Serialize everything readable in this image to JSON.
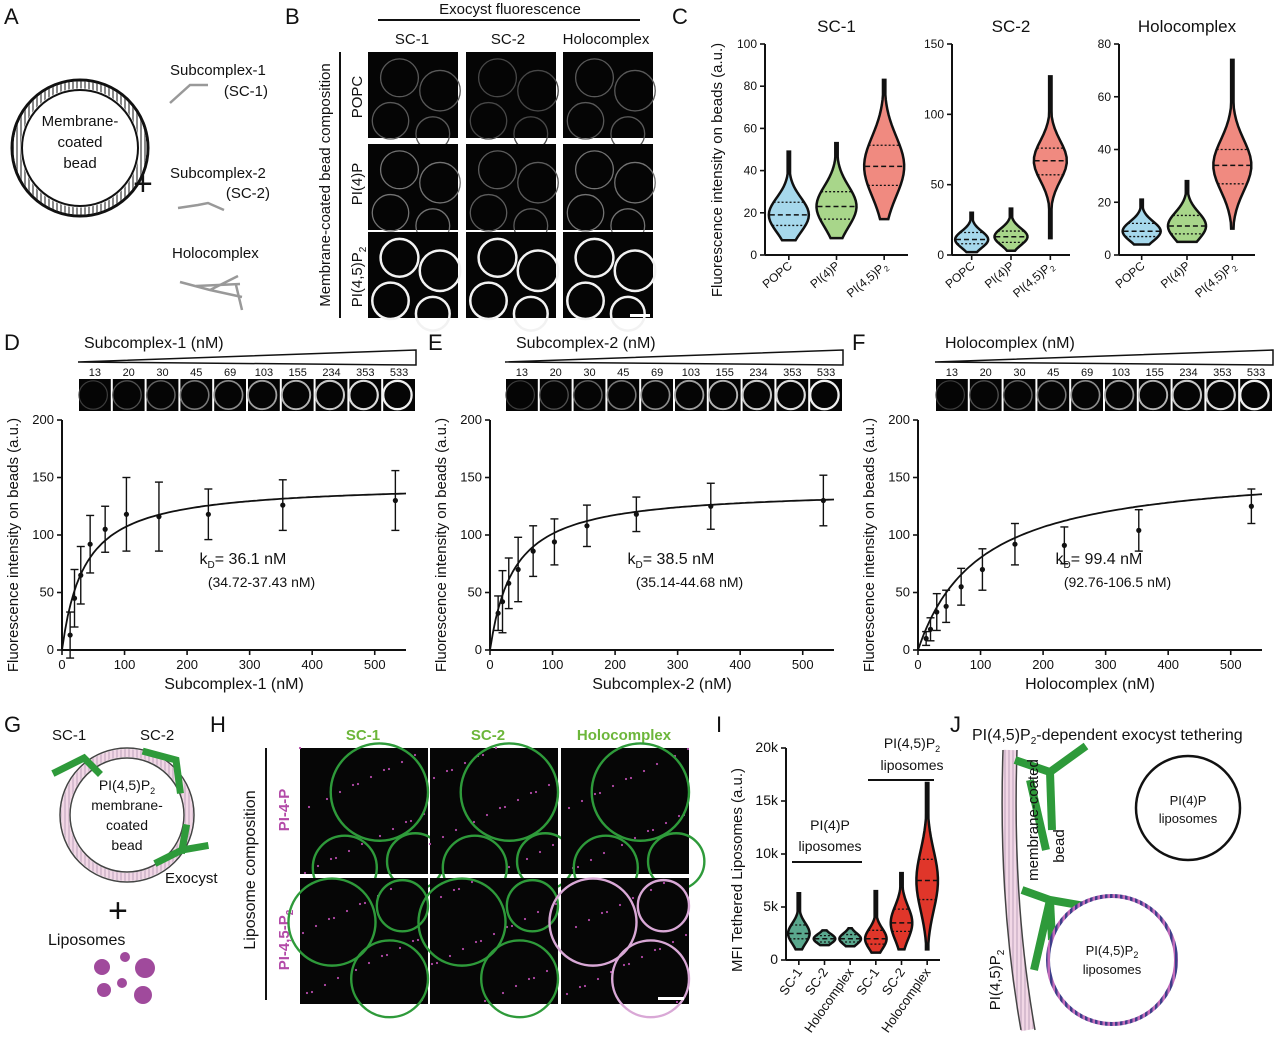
{
  "panels": {
    "A": {
      "letter": "A",
      "bead_label": [
        "Membrane-",
        "coated",
        "bead"
      ],
      "plus": "+",
      "sc1_label": [
        "Subcomplex-1",
        "(SC-1)"
      ],
      "sc2_label": [
        "Subcomplex-2",
        "(SC-2)"
      ],
      "holo_label": "Holocomplex"
    },
    "B": {
      "letter": "B",
      "header": "Exocyst fluorescence",
      "columns": [
        "SC-1",
        "SC-2",
        "Holocomplex"
      ],
      "side_label": "Membrane-coated bead composition",
      "rows": [
        "POPC",
        "PI(4)P",
        "PI(4,5)P"
      ],
      "row_sub": "2"
    },
    "C": {
      "letter": "C",
      "ylabel": "Fluorescence intensity on beads (a.u.)",
      "xcats": [
        "POPC",
        "PI(4)P",
        "PI(4,5)P"
      ],
      "xsub": "2"
    },
    "D": {
      "letter": "D",
      "strip_title": "Subcomplex-1 (nM)",
      "conc": [
        "13",
        "20",
        "30",
        "45",
        "69",
        "103",
        "155",
        "234",
        "353",
        "533"
      ],
      "kd_text": "= 36.1 nM",
      "ci_text": "(34.72-37.43 nM)"
    },
    "E": {
      "letter": "E",
      "strip_title": "Subcomplex-2 (nM)",
      "conc": [
        "13",
        "20",
        "30",
        "45",
        "69",
        "103",
        "155",
        "234",
        "353",
        "533"
      ],
      "kd_text": "= 38.5 nM",
      "ci_text": "(35.14-44.68 nM)"
    },
    "F": {
      "letter": "F",
      "strip_title": "Holocomplex (nM)",
      "conc": [
        "13",
        "20",
        "30",
        "45",
        "69",
        "103",
        "155",
        "234",
        "353",
        "533"
      ],
      "kd_text": "= 99.4 nM",
      "ci_text": "(92.76-106.5 nM)"
    },
    "G": {
      "letter": "G",
      "sc1": "SC-1",
      "sc2": "SC-2",
      "bead": [
        "PI(4,5)P",
        "membrane-",
        "coated",
        "bead"
      ],
      "bead_sub": "2",
      "exocyst": "Exocyst",
      "plus": "+",
      "liposomes": "Liposomes"
    },
    "H": {
      "letter": "H",
      "columns": [
        "SC-1",
        "SC-2",
        "Holocomplex"
      ],
      "side_label": "Liposome composition",
      "row1": "PI-4-P",
      "row2": "PI-4,5-P",
      "row2_sub": "2"
    },
    "I": {
      "letter": "I",
      "ylabel": "MFI Tethered Liposomes (a.u.)",
      "yticks": [
        "0",
        "5k",
        "10k",
        "15k",
        "20k"
      ],
      "group1": [
        "PI(4)P",
        "liposomes"
      ],
      "group2": [
        "PI(4,5)P",
        "liposomes"
      ],
      "group2_sub": "2",
      "xcats": [
        "SC-1",
        "SC-2",
        "Holocomplex",
        "SC-1",
        "SC-2",
        "Holocomplex"
      ]
    },
    "J": {
      "letter": "J",
      "title_a": "PI(4,5)P",
      "title_sub": "2",
      "title_b": "-dependent exocyst tethering",
      "pi4p_lipo": [
        "PI(4)P",
        "liposomes"
      ],
      "pip2_lipo": [
        "PI(4,5)P",
        "liposomes"
      ],
      "pip2_sub": "2",
      "bead_label_a": "PI(4,5)P",
      "bead_label_b": "membrane-coated",
      "bead_label_c": "bead"
    }
  },
  "colors": {
    "popc": "#a6d8ec",
    "pi4p": "#a8d68a",
    "pip2": "#f08a80",
    "green": "#2e9a3a",
    "magenta": "#b34aa8",
    "red": "#e0362a",
    "teal": "#5aa88e"
  },
  "chart_data": [
    {
      "type": "violin",
      "panel": "C",
      "title": "SC-1",
      "ylabel": "Fluorescence intensity on beads (a.u.)",
      "categories": [
        "POPC",
        "PI(4)P",
        "PI(4,5)P2"
      ],
      "medians": [
        19,
        23,
        42
      ],
      "q1": [
        14,
        17,
        33
      ],
      "q3": [
        25,
        30,
        52
      ],
      "min": [
        7,
        8,
        17
      ],
      "max": [
        49,
        53,
        83
      ],
      "ylim": [
        0,
        100
      ],
      "yticks": [
        0,
        20,
        40,
        60,
        80,
        100
      ]
    },
    {
      "type": "violin",
      "panel": "C",
      "title": "SC-2",
      "categories": [
        "POPC",
        "PI(4)P",
        "PI(4,5)P2"
      ],
      "medians": [
        11,
        13,
        67
      ],
      "q1": [
        8,
        9,
        57
      ],
      "q3": [
        16,
        17,
        76
      ],
      "min": [
        2,
        3,
        12
      ],
      "max": [
        30,
        33,
        127
      ],
      "ylim": [
        0,
        150
      ],
      "yticks": [
        0,
        50,
        100,
        150
      ]
    },
    {
      "type": "violin",
      "panel": "C",
      "title": "Holocomplex",
      "categories": [
        "POPC",
        "PI(4)P",
        "PI(4,5)P2"
      ],
      "medians": [
        9,
        11,
        34
      ],
      "q1": [
        7,
        8,
        27
      ],
      "q3": [
        12,
        15,
        40
      ],
      "min": [
        4,
        5,
        10
      ],
      "max": [
        21,
        28,
        74
      ],
      "ylim": [
        0,
        80
      ],
      "yticks": [
        0,
        20,
        40,
        60,
        80
      ]
    },
    {
      "type": "scatter",
      "panel": "D",
      "xlabel": "Subcomplex-1 (nM)",
      "ylabel": "Fluorescence intensity on beads (a.u.)",
      "x": [
        13,
        20,
        30,
        45,
        69,
        103,
        155,
        234,
        353,
        533
      ],
      "y": [
        13,
        45,
        65,
        92,
        105,
        118,
        116,
        118,
        126,
        130
      ],
      "err": [
        20,
        25,
        25,
        25,
        20,
        32,
        30,
        22,
        22,
        26
      ],
      "fit": {
        "model": "one-site",
        "bmax": 145,
        "kd": 36.1
      },
      "xlim": [
        0,
        550
      ],
      "ylim": [
        0,
        200
      ],
      "xticks": [
        0,
        100,
        200,
        300,
        400,
        500
      ],
      "yticks": [
        0,
        50,
        100,
        150,
        200
      ]
    },
    {
      "type": "scatter",
      "panel": "E",
      "xlabel": "Subcomplex-2 (nM)",
      "ylabel": "Fluorescence intensity on beads (a.u.)",
      "x": [
        13,
        20,
        30,
        45,
        69,
        103,
        155,
        234,
        353,
        533
      ],
      "y": [
        32,
        42,
        58,
        70,
        86,
        94,
        108,
        118,
        125,
        130
      ],
      "err": [
        15,
        27,
        22,
        28,
        22,
        20,
        18,
        15,
        20,
        22
      ],
      "fit": {
        "model": "one-site",
        "bmax": 140,
        "kd": 38.5
      },
      "xlim": [
        0,
        550
      ],
      "ylim": [
        0,
        200
      ],
      "xticks": [
        0,
        100,
        200,
        300,
        400,
        500
      ],
      "yticks": [
        0,
        50,
        100,
        150,
        200
      ]
    },
    {
      "type": "scatter",
      "panel": "F",
      "xlabel": "Holocomplex (nM)",
      "ylabel": "Fluorescence intensity on beads (a.u.)",
      "x": [
        13,
        20,
        30,
        45,
        69,
        103,
        155,
        234,
        353,
        533
      ],
      "y": [
        10,
        18,
        33,
        38,
        55,
        70,
        92,
        91,
        104,
        125
      ],
      "err": [
        6,
        10,
        16,
        14,
        16,
        18,
        18,
        16,
        18,
        15
      ],
      "fit": {
        "model": "one-site",
        "bmax": 160,
        "kd": 99.4
      },
      "xlim": [
        0,
        550
      ],
      "ylim": [
        0,
        200
      ],
      "xticks": [
        0,
        100,
        200,
        300,
        400,
        500
      ],
      "yticks": [
        0,
        50,
        100,
        150,
        200
      ]
    },
    {
      "type": "violin",
      "panel": "I",
      "ylabel": "MFI Tethered Liposomes (a.u.)",
      "categories": [
        "SC-1",
        "SC-2",
        "Holocomplex",
        "SC-1",
        "SC-2",
        "Holocomplex"
      ],
      "groups": [
        "PI(4)P liposomes",
        "PI(4)P liposomes",
        "PI(4)P liposomes",
        "PI(4,5)P2 liposomes",
        "PI(4,5)P2 liposomes",
        "PI(4,5)P2 liposomes"
      ],
      "medians": [
        2500,
        2000,
        2000,
        2000,
        3500,
        7500
      ],
      "q1": [
        2000,
        1700,
        1700,
        1500,
        2700,
        5700
      ],
      "q3": [
        3300,
        2300,
        2400,
        2800,
        4800,
        9500
      ],
      "min": [
        1000,
        1400,
        1300,
        700,
        1000,
        1000
      ],
      "max": [
        6300,
        2800,
        3000,
        6500,
        8200,
        16700
      ],
      "ylim": [
        0,
        20000
      ],
      "yticks": [
        0,
        5000,
        10000,
        15000,
        20000
      ]
    }
  ]
}
